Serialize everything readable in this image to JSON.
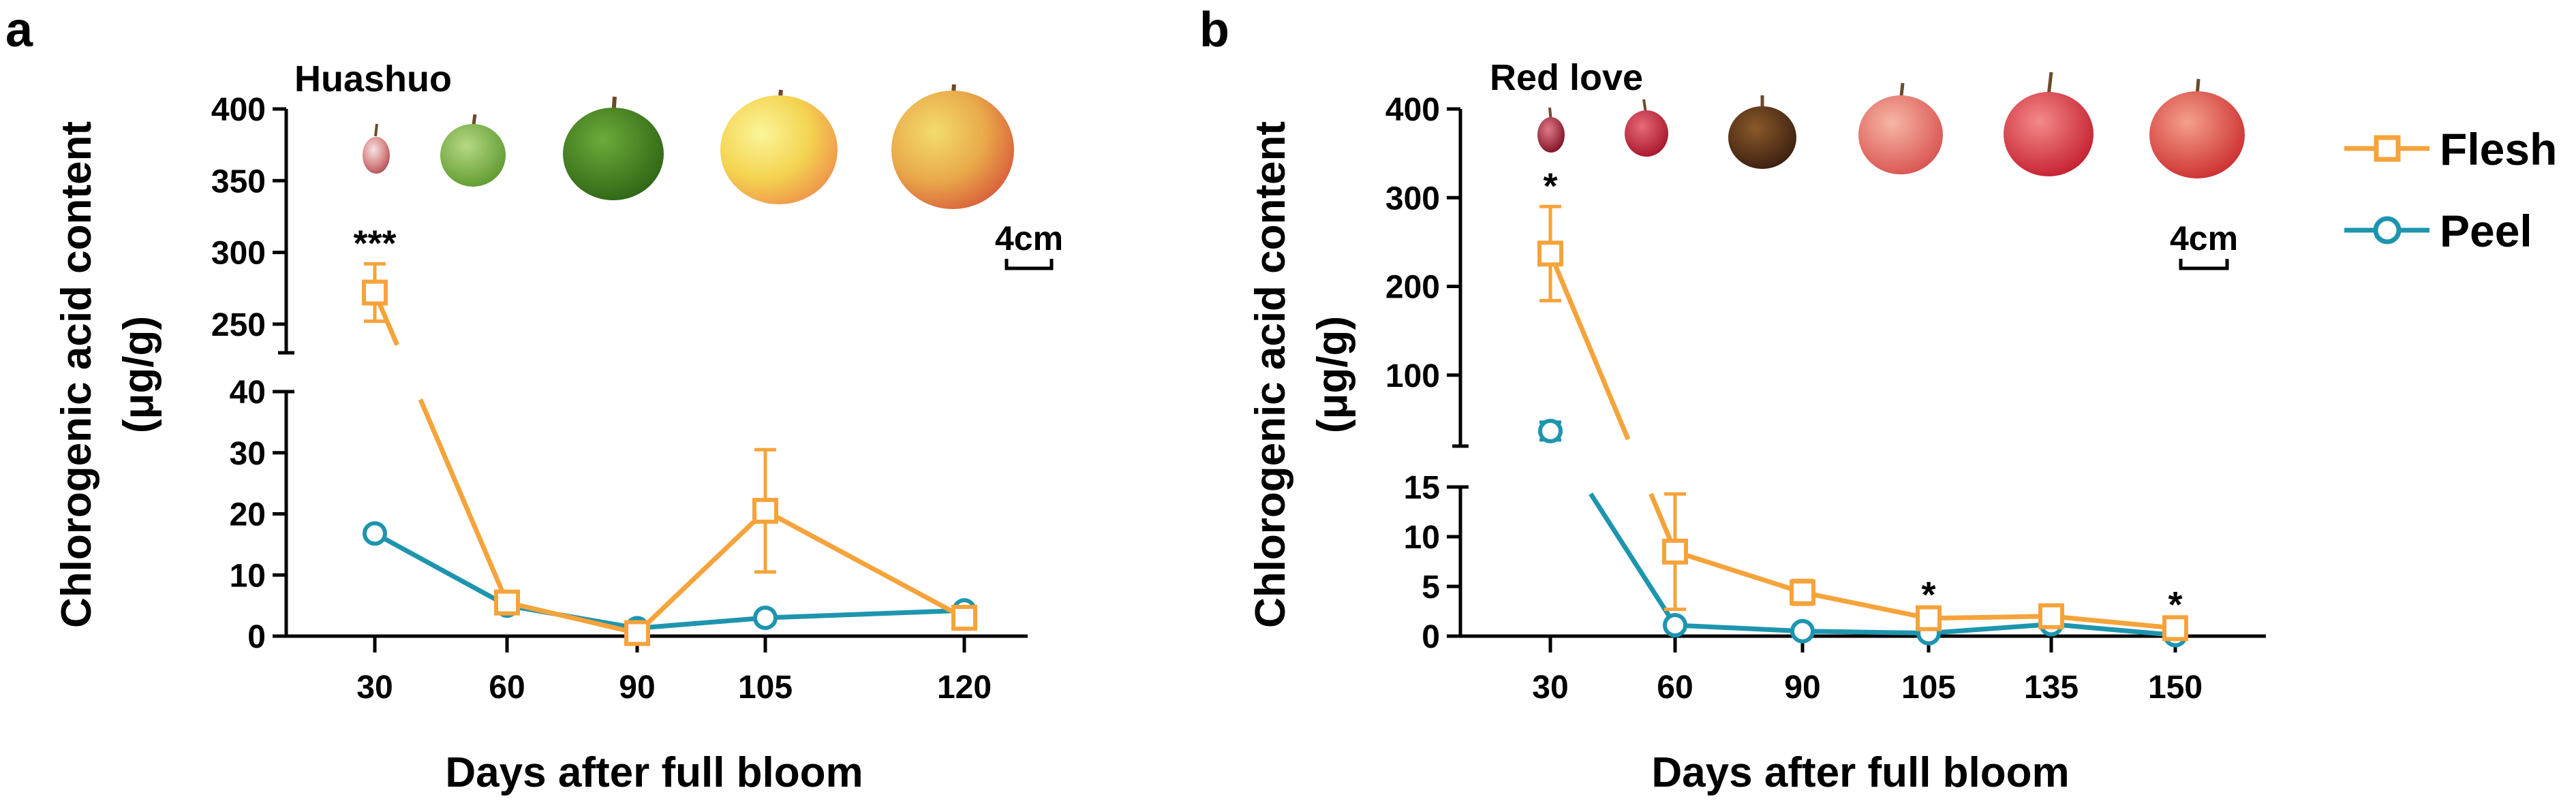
{
  "colors": {
    "flesh": "#F5A33A",
    "peel": "#1E95AE",
    "axis": "#000000"
  },
  "legend": {
    "flesh": "Flesh",
    "peel": "Peel"
  },
  "chart_data": [
    {
      "type": "line",
      "panel": "a",
      "cultivar": "Huashuo",
      "xlabel": "Days after full bloom",
      "ylabel": "Chlorogenic acid content",
      "ylabel_unit": "(μg/g)",
      "categories": [
        "30",
        "60",
        "90",
        "105",
        "120"
      ],
      "ylim_low": [
        0,
        40
      ],
      "ylim_high": [
        230,
        400
      ],
      "yticks_low": [
        "0",
        "10",
        "20",
        "30",
        "40"
      ],
      "yticks_high": [
        "250",
        "300",
        "350",
        "400"
      ],
      "series": [
        {
          "name": "Flesh",
          "values": [
            272,
            5.5,
            0.5,
            20.5,
            3
          ],
          "errors": [
            20,
            0.5,
            0.3,
            10,
            0.4
          ]
        },
        {
          "name": "Peel",
          "values": [
            16.8,
            5,
            1.3,
            3,
            4.2
          ],
          "errors": [
            0.5,
            0.5,
            0.3,
            0.4,
            0.4
          ]
        }
      ],
      "annotations": [
        {
          "category": "30",
          "text": "***"
        }
      ],
      "scale_bar": "4cm",
      "fruit_images": [
        "apple-fruit-30-dafb",
        "apple-fruit-60-dafb",
        "apple-fruit-90-dafb",
        "apple-fruit-105-dafb",
        "apple-fruit-120-dafb"
      ]
    },
    {
      "type": "line",
      "panel": "b",
      "cultivar": "Red love",
      "xlabel": "Days after full bloom",
      "ylabel": "Chlorogenic acid content",
      "ylabel_unit": "(μg/g)",
      "categories": [
        "30",
        "60",
        "90",
        "105",
        "135",
        "150"
      ],
      "ylim_low": [
        0,
        15
      ],
      "ylim_high": [
        20,
        400
      ],
      "yticks_low": [
        "0",
        "5",
        "10",
        "15"
      ],
      "yticks_high": [
        "100",
        "200",
        "300",
        "400"
      ],
      "series": [
        {
          "name": "Flesh",
          "values": [
            237,
            8.5,
            4.4,
            1.8,
            2,
            0.8
          ],
          "errors": [
            53,
            5.8,
            1.2,
            0.3,
            0.3,
            0.3
          ]
        },
        {
          "name": "Peel",
          "values": [
            37,
            1.1,
            0.5,
            0.3,
            1.2,
            0.1
          ],
          "errors": [
            10,
            0.3,
            0.2,
            0.1,
            0.2,
            0.05
          ]
        }
      ],
      "annotations": [
        {
          "category": "30",
          "text": "*"
        },
        {
          "category": "105",
          "text": "*"
        },
        {
          "category": "150",
          "text": "*"
        }
      ],
      "scale_bar": "4cm",
      "fruit_images": [
        "apple-fruit-30-dafb",
        "apple-fruit-60-dafb",
        "apple-fruit-90-dafb",
        "apple-fruit-105-dafb",
        "apple-fruit-135-dafb",
        "apple-fruit-150-dafb"
      ]
    }
  ]
}
